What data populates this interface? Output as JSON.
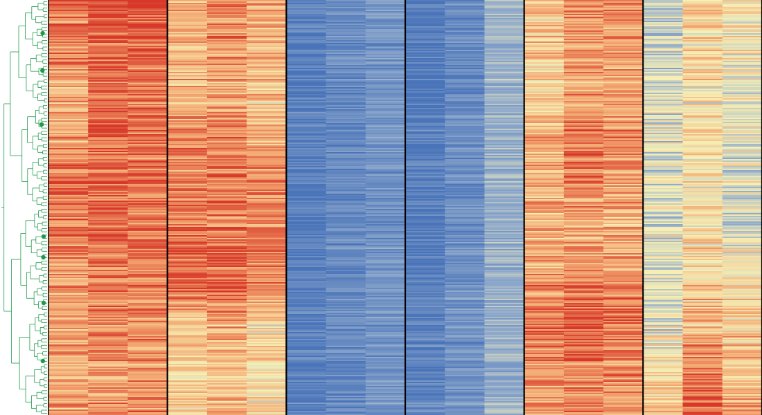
{
  "chart_data": {
    "type": "heatmap",
    "title": "",
    "xlabel": "",
    "ylabel": "",
    "n_rows": 300,
    "n_groups": 6,
    "columns_per_group": 3,
    "color_scale": [
      "#4a74b9",
      "#8fa9cc",
      "#f6f0b6",
      "#f3a56f",
      "#d7382a"
    ],
    "value_range": [
      -1,
      1
    ],
    "dendrogram_color": "#1e9a4a",
    "separator_color": "#000000",
    "leaf_markers": 7,
    "groups": [
      {
        "name": "",
        "columns": [
          {
            "segments": [
              [
                0,
                0.7
              ],
              [
                0.3,
                0.45
              ],
              [
                0.45,
                0.72
              ],
              [
                0.55,
                0.7
              ],
              [
                0.75,
                0.45
              ],
              [
                1.0,
                0.45
              ]
            ]
          },
          {
            "segments": [
              [
                0,
                0.8
              ],
              [
                0.3,
                0.75
              ],
              [
                0.55,
                0.85
              ],
              [
                0.75,
                0.6
              ],
              [
                1.0,
                0.55
              ]
            ]
          },
          {
            "segments": [
              [
                0,
                0.85
              ],
              [
                0.3,
                0.7
              ],
              [
                0.55,
                0.75
              ],
              [
                0.75,
                0.55
              ],
              [
                1.0,
                0.6
              ]
            ]
          }
        ]
      },
      {
        "name": "",
        "columns": [
          {
            "segments": [
              [
                0,
                0.35
              ],
              [
                0.25,
                0.45
              ],
              [
                0.45,
                0.7
              ],
              [
                0.7,
                0.75
              ],
              [
                0.78,
                0.2
              ],
              [
                1.0,
                0.25
              ]
            ]
          },
          {
            "segments": [
              [
                0,
                0.6
              ],
              [
                0.25,
                0.5
              ],
              [
                0.45,
                0.7
              ],
              [
                0.7,
                0.8
              ],
              [
                0.78,
                0.4
              ],
              [
                1.0,
                0.35
              ]
            ]
          },
          {
            "segments": [
              [
                0,
                0.4
              ],
              [
                0.25,
                0.3
              ],
              [
                0.45,
                0.65
              ],
              [
                0.7,
                0.7
              ],
              [
                0.78,
                0.1
              ],
              [
                1.0,
                0.2
              ]
            ]
          }
        ]
      },
      {
        "name": "",
        "columns": [
          {
            "segments": [
              [
                0,
                -0.9
              ],
              [
                1.0,
                -0.9
              ]
            ]
          },
          {
            "segments": [
              [
                0,
                -0.8
              ],
              [
                1.0,
                -0.8
              ]
            ]
          },
          {
            "segments": [
              [
                0,
                -0.7
              ],
              [
                1.0,
                -0.7
              ]
            ]
          }
        ]
      },
      {
        "name": "",
        "columns": [
          {
            "segments": [
              [
                0,
                -0.95
              ],
              [
                1.0,
                -0.85
              ]
            ]
          },
          {
            "segments": [
              [
                0,
                -0.8
              ],
              [
                1.0,
                -0.7
              ]
            ]
          },
          {
            "segments": [
              [
                0,
                -0.45
              ],
              [
                1.0,
                -0.45
              ]
            ]
          }
        ]
      },
      {
        "name": "",
        "columns": [
          {
            "segments": [
              [
                0,
                0.3
              ],
              [
                0.25,
                0.2
              ],
              [
                0.35,
                0.45
              ],
              [
                0.55,
                0.4
              ],
              [
                0.78,
                0.7
              ],
              [
                1.0,
                0.45
              ]
            ]
          },
          {
            "segments": [
              [
                0,
                0.55
              ],
              [
                0.25,
                0.5
              ],
              [
                0.35,
                0.8
              ],
              [
                0.55,
                0.45
              ],
              [
                0.78,
                0.85
              ],
              [
                1.0,
                0.55
              ]
            ]
          },
          {
            "segments": [
              [
                0,
                0.55
              ],
              [
                0.25,
                0.45
              ],
              [
                0.35,
                0.6
              ],
              [
                0.55,
                0.4
              ],
              [
                0.78,
                0.7
              ],
              [
                1.0,
                0.5
              ]
            ]
          }
        ]
      },
      {
        "name": "",
        "columns": [
          {
            "segments": [
              [
                0,
                -0.25
              ],
              [
                0.5,
                -0.1
              ],
              [
                0.78,
                -0.15
              ],
              [
                0.95,
                0.3
              ],
              [
                1.0,
                0.35
              ]
            ]
          },
          {
            "segments": [
              [
                0,
                0.2
              ],
              [
                0.5,
                0.05
              ],
              [
                0.78,
                0.35
              ],
              [
                0.95,
                0.8
              ],
              [
                1.0,
                0.85
              ]
            ]
          },
          {
            "segments": [
              [
                0,
                0.05
              ],
              [
                0.5,
                -0.15
              ],
              [
                0.78,
                0.2
              ],
              [
                0.95,
                0.45
              ],
              [
                1.0,
                0.5
              ]
            ]
          }
        ]
      }
    ]
  }
}
